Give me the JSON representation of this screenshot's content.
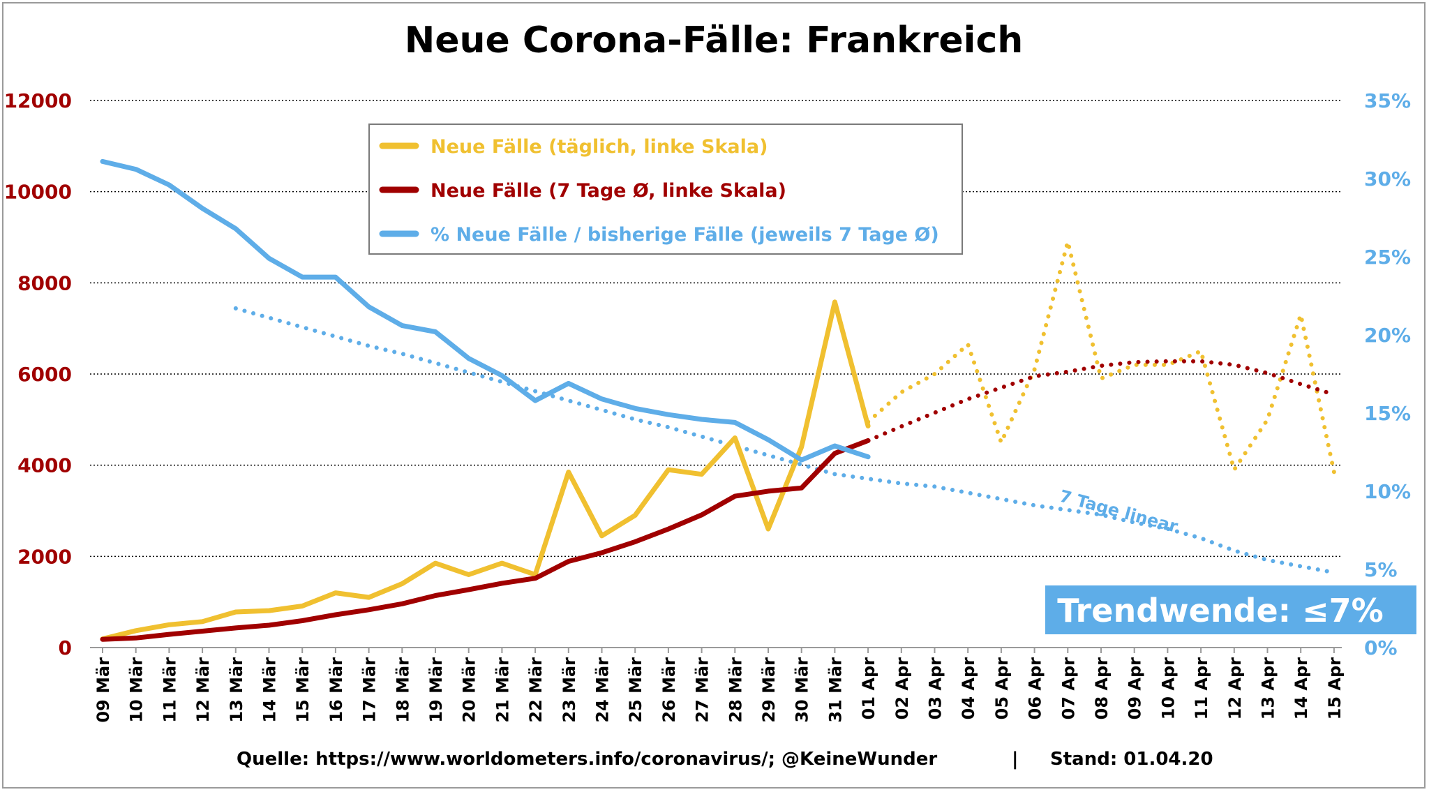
{
  "chart_data": {
    "type": "line",
    "title": "Neue Corona-Fälle: Frankreich",
    "categories": [
      "09 Mär",
      "10 Mär",
      "11 Mär",
      "12 Mär",
      "13 Mär",
      "14 Mär",
      "15 Mär",
      "16 Mär",
      "17 Mär",
      "18 Mär",
      "19 Mär",
      "20 Mär",
      "21 Mär",
      "22 Mär",
      "23 Mär",
      "24 Mär",
      "25 Mär",
      "26 Mär",
      "27 Mär",
      "28 Mär",
      "29 Mär",
      "30 Mär",
      "31 Mär",
      "01 Apr",
      "02 Apr",
      "03 Apr",
      "04 Apr",
      "05 Apr",
      "06 Apr",
      "07 Apr",
      "08 Apr",
      "09 Apr",
      "10 Apr",
      "11 Apr",
      "12 Apr",
      "13 Apr",
      "14 Apr",
      "15 Apr"
    ],
    "y_left": {
      "ticks": [
        "0",
        "2000",
        "4000",
        "6000",
        "8000",
        "10000",
        "12000"
      ],
      "range": [
        0,
        12000
      ]
    },
    "y_right": {
      "ticks": [
        "0%",
        "5%",
        "10%",
        "15%",
        "20%",
        "25%",
        "30%",
        "35%"
      ],
      "range": [
        0,
        35
      ]
    },
    "grid": "horizontal dotted",
    "legend_position": "top-center",
    "series": [
      {
        "name": "Neue Fälle (täglich, linke Skala)",
        "axis": "left",
        "color": "#f0c030",
        "style": "solid",
        "values": [
          190,
          370,
          500,
          570,
          780,
          810,
          910,
          1200,
          1100,
          1400,
          1850,
          1600,
          1850,
          1600,
          3850,
          2450,
          2900,
          3900,
          3800,
          4600,
          2600,
          4400,
          7580,
          4860,
          null,
          null,
          null,
          null,
          null,
          null,
          null,
          null,
          null,
          null,
          null,
          null,
          null,
          null
        ]
      },
      {
        "name": "Neue Fälle (7 Tage Ø, linke Skala)",
        "axis": "left",
        "color": "#a00000",
        "style": "solid",
        "values": [
          180,
          210,
          290,
          360,
          430,
          490,
          590,
          720,
          830,
          960,
          1140,
          1270,
          1410,
          1520,
          1890,
          2080,
          2320,
          2600,
          2910,
          3320,
          3430,
          3500,
          4260,
          4540,
          null,
          null,
          null,
          null,
          null,
          null,
          null,
          null,
          null,
          null,
          null,
          null,
          null,
          null
        ]
      },
      {
        "name": "% Neue Fälle / bisherige Fälle (jeweils 7 Tage Ø)",
        "axis": "right",
        "color": "#5eade8",
        "style": "solid",
        "values": [
          31.1,
          30.6,
          29.6,
          28.1,
          26.8,
          24.9,
          23.7,
          23.7,
          21.8,
          20.6,
          20.2,
          18.5,
          17.4,
          15.8,
          16.9,
          15.9,
          15.3,
          14.9,
          14.6,
          14.4,
          13.3,
          12.0,
          12.9,
          12.2,
          null,
          null,
          null,
          null,
          null,
          null,
          null,
          null,
          null,
          null,
          null,
          null,
          null,
          null
        ]
      },
      {
        "axis": "left",
        "color": "#f0c030",
        "style": "dotted",
        "values": [
          null,
          null,
          null,
          null,
          null,
          null,
          null,
          null,
          null,
          null,
          null,
          null,
          null,
          null,
          null,
          null,
          null,
          null,
          null,
          null,
          null,
          null,
          null,
          4950,
          5600,
          6000,
          6650,
          4500,
          6100,
          8900,
          5900,
          6200,
          6200,
          6500,
          3900,
          5000,
          7300,
          3850
        ]
      },
      {
        "axis": "left",
        "color": "#a00000",
        "style": "dotted",
        "values": [
          null,
          null,
          null,
          null,
          null,
          null,
          null,
          null,
          null,
          null,
          null,
          null,
          null,
          null,
          null,
          null,
          null,
          null,
          null,
          null,
          null,
          null,
          null,
          4540,
          4850,
          5150,
          5450,
          5700,
          5950,
          6050,
          6180,
          6260,
          6280,
          6280,
          6200,
          6020,
          5780,
          5550
        ]
      },
      {
        "axis": "right",
        "color": "#5eade8",
        "style": "dotted",
        "values": [
          null,
          null,
          null,
          null,
          21.7,
          21.1,
          20.5,
          19.9,
          19.3,
          18.8,
          18.2,
          17.6,
          17.0,
          16.4,
          15.8,
          15.2,
          14.6,
          14.1,
          13.5,
          12.9,
          12.3,
          11.7,
          11.1,
          10.8,
          10.5,
          10.3,
          9.9,
          9.5,
          9.1,
          8.8,
          8.5,
          8.0,
          7.6,
          7.0,
          6.2,
          5.6,
          5.2,
          4.8
        ]
      }
    ],
    "annotations": {
      "trend_label": "7 Tage linear",
      "trend_box": "Trendwende: ≤7%"
    }
  },
  "footer": {
    "source": "Quelle: https://www.worldometers.info/coronavirus/; @KeineWunder",
    "separator": "|",
    "stand": "Stand: 01.04.20"
  }
}
